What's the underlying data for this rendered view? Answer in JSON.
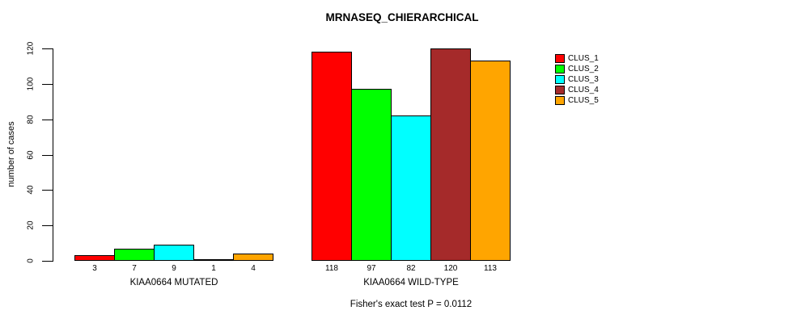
{
  "chart_data": {
    "type": "bar",
    "title": "MRNASEQ_CHIERARCHICAL",
    "ylabel": "number of cases",
    "xlabel": "",
    "ylim": [
      0,
      120
    ],
    "yticks": [
      0,
      20,
      40,
      60,
      80,
      100,
      120
    ],
    "grid": false,
    "legend_position": "right",
    "categories": [
      "KIAA0664 MUTATED",
      "KIAA0664 WILD-TYPE"
    ],
    "series": [
      {
        "name": "CLUS_1",
        "color": "#FF0000",
        "values": [
          3,
          118
        ]
      },
      {
        "name": "CLUS_2",
        "color": "#00FF00",
        "values": [
          7,
          97
        ]
      },
      {
        "name": "CLUS_3",
        "color": "#00FFFF",
        "values": [
          9,
          82
        ]
      },
      {
        "name": "CLUS_4",
        "color": "#A52A2A",
        "values": [
          1,
          120
        ]
      },
      {
        "name": "CLUS_5",
        "color": "#FFA500",
        "values": [
          4,
          113
        ]
      }
    ],
    "annotation": "Fisher's exact test P = 0.0112",
    "bar_border_color": "#000000",
    "background": "#FFFFFF",
    "text_color": "#000000"
  }
}
